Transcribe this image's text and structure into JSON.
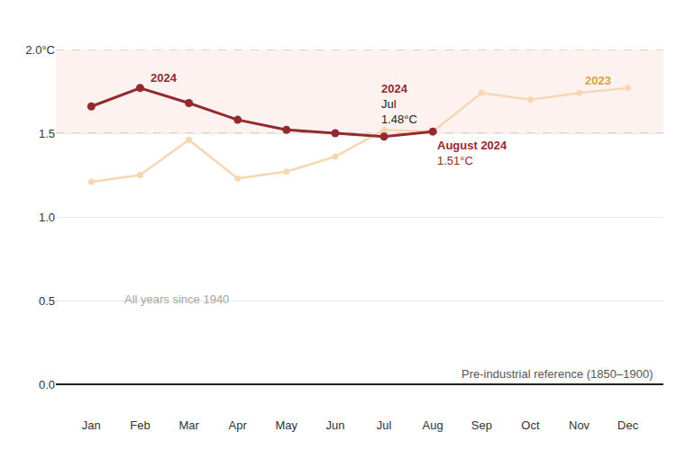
{
  "chart_data": {
    "type": "line",
    "categories": [
      "Jan",
      "Feb",
      "Mar",
      "Apr",
      "May",
      "Jun",
      "Jul",
      "Aug",
      "Sep",
      "Oct",
      "Nov",
      "Dec"
    ],
    "series": [
      {
        "name": "2023",
        "color": "#f6d7b4",
        "marker": "circle",
        "values": [
          1.21,
          1.25,
          1.46,
          1.23,
          1.27,
          1.36,
          1.52,
          1.51,
          1.74,
          1.7,
          1.74,
          1.77
        ]
      },
      {
        "name": "2024",
        "color": "#922b2f",
        "marker": "circle",
        "values": [
          1.66,
          1.77,
          1.68,
          1.58,
          1.52,
          1.5,
          1.48,
          1.51,
          null,
          null,
          null,
          null
        ]
      }
    ],
    "ylim": [
      0,
      2.0
    ],
    "yticks": [
      {
        "value": 0,
        "label": "0.0"
      },
      0.5,
      {
        "value": 1,
        "label": "1.0"
      },
      1.5,
      {
        "value": 2,
        "label": "2.0°C"
      }
    ],
    "grid": true,
    "highlight_band": [
      1.5,
      2.0
    ],
    "annotations": [
      {
        "lines": [
          "2024"
        ],
        "series": "2024",
        "category": "Feb"
      },
      {
        "lines": [
          "2024",
          "Jul",
          "1.48°C"
        ],
        "series": "2024",
        "category": "Jul"
      },
      {
        "lines": [
          "August 2024",
          "1.51°C"
        ],
        "series": "2024",
        "category": "Aug"
      },
      {
        "lines": [
          "2023"
        ],
        "series": "2023",
        "category": "Nov"
      }
    ],
    "note": "All years since 1940",
    "reference_label": "Pre-industrial reference (1850–1900)"
  }
}
